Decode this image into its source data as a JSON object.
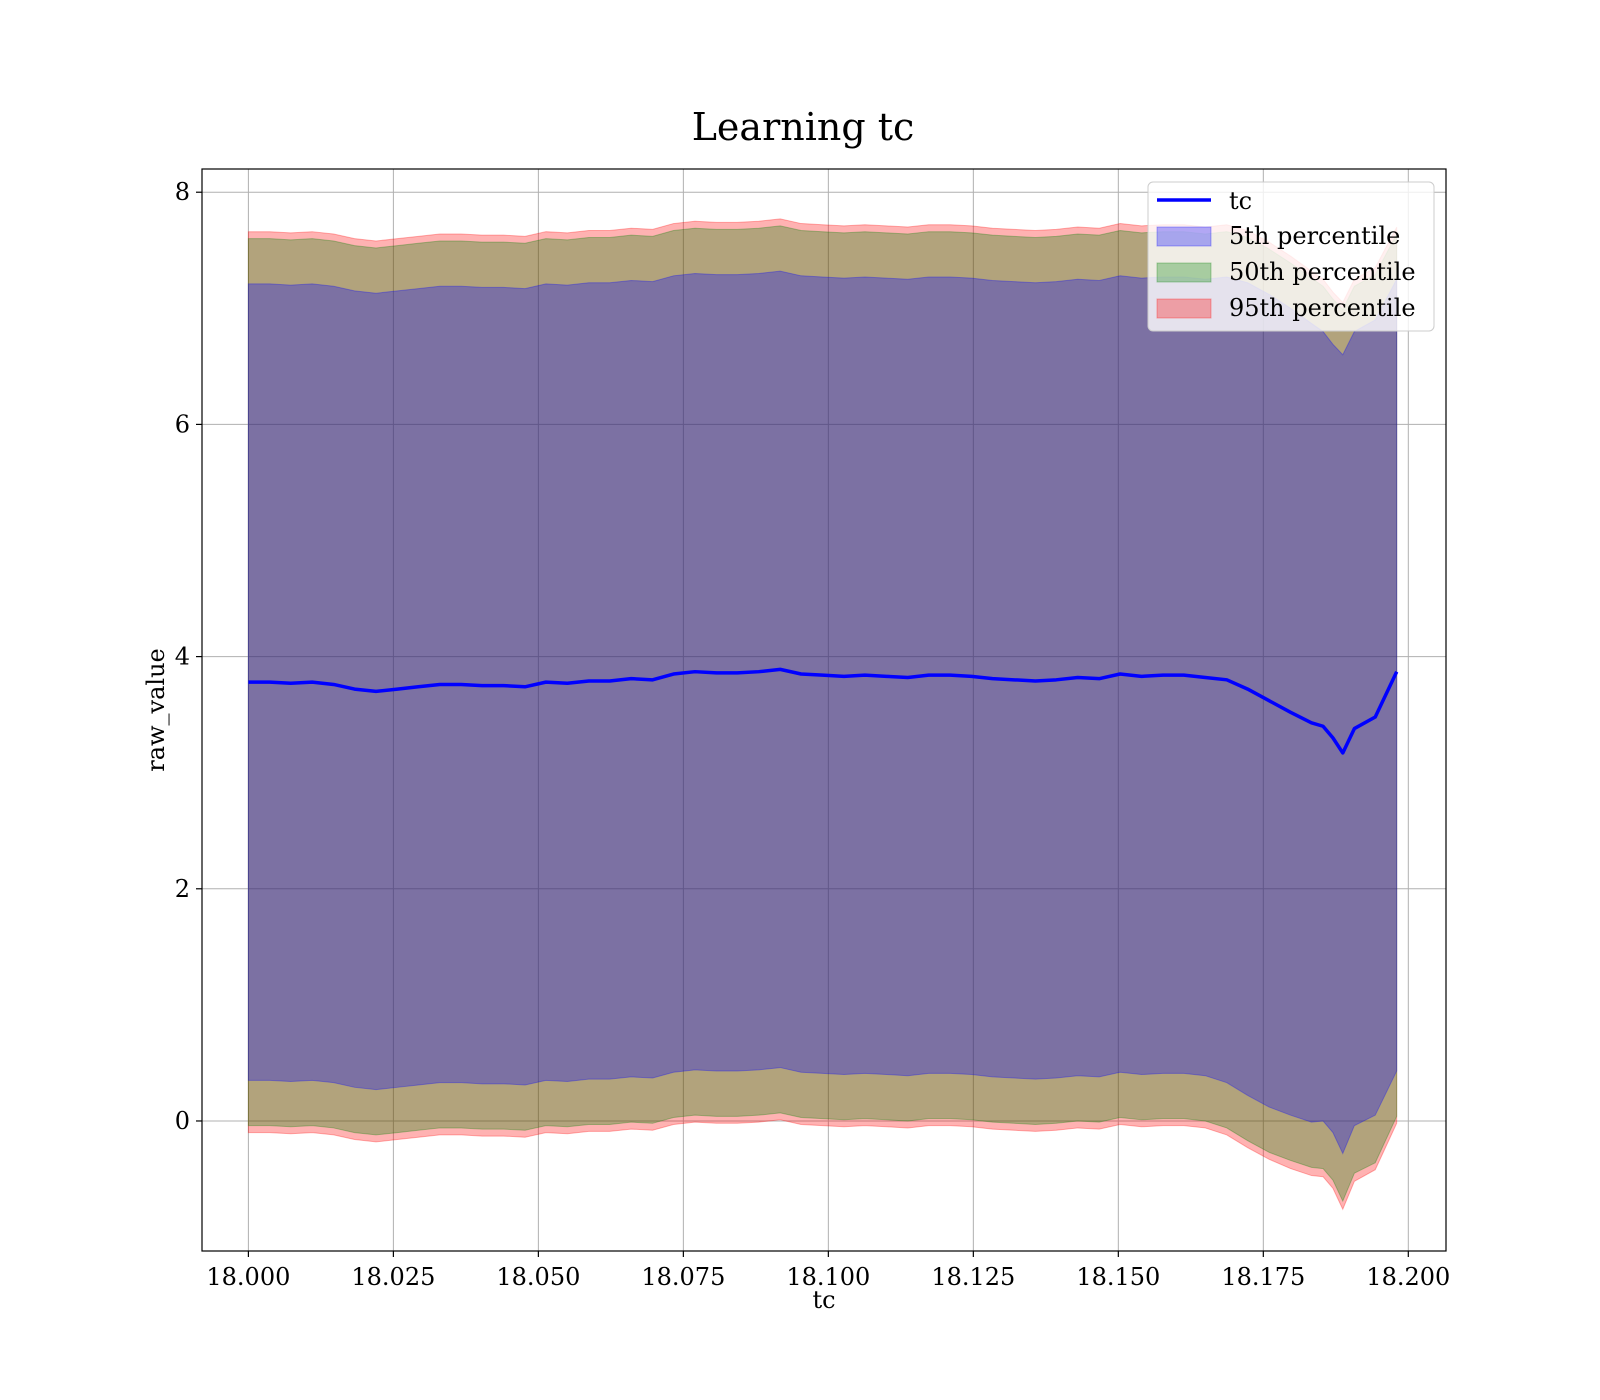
{
  "chart_data": {
    "type": "area",
    "title": "Learning tc",
    "xlabel": "tc",
    "ylabel": "raw_value",
    "xlim": [
      17.992,
      18.2065
    ],
    "ylim": [
      -1.12,
      8.2
    ],
    "xticks": [
      18.0,
      18.025,
      18.05,
      18.075,
      18.1,
      18.125,
      18.15,
      18.175,
      18.2
    ],
    "xtick_labels": [
      "18.000",
      "18.025",
      "18.050",
      "18.075",
      "18.100",
      "18.125",
      "18.150",
      "18.175",
      "18.200"
    ],
    "yticks": [
      0,
      2,
      4,
      6,
      8
    ],
    "ytick_labels": [
      "0",
      "2",
      "4",
      "6",
      "8"
    ],
    "grid": true,
    "legend_position": "top-right",
    "legend": [
      {
        "label": "tc",
        "kind": "line",
        "color": "#0000ff"
      },
      {
        "label": "5th percentile",
        "kind": "patch",
        "color": "#0000ff"
      },
      {
        "label": "50th percentile",
        "kind": "patch",
        "color": "#008000"
      },
      {
        "label": "95th percentile",
        "kind": "patch",
        "color": "#ff0000"
      }
    ],
    "x": [
      18.0,
      18.0037,
      18.0073,
      18.011,
      18.0147,
      18.0183,
      18.022,
      18.0257,
      18.0293,
      18.033,
      18.0367,
      18.0403,
      18.044,
      18.0477,
      18.0513,
      18.055,
      18.0587,
      18.0623,
      18.066,
      18.0697,
      18.0733,
      18.077,
      18.0807,
      18.0843,
      18.088,
      18.0917,
      18.0953,
      18.099,
      18.1027,
      18.1063,
      18.11,
      18.1137,
      18.1173,
      18.121,
      18.1247,
      18.1283,
      18.132,
      18.1357,
      18.1393,
      18.143,
      18.1467,
      18.1503,
      18.154,
      18.1577,
      18.1613,
      18.165,
      18.1687,
      18.1723,
      18.176,
      18.1797,
      18.1833,
      18.1853,
      18.187,
      18.1887,
      18.1907,
      18.1943,
      18.198
    ],
    "series": [
      {
        "name": "tc",
        "color": "#0000ff",
        "values": [
          3.78,
          3.78,
          3.77,
          3.78,
          3.76,
          3.72,
          3.7,
          3.72,
          3.74,
          3.76,
          3.76,
          3.75,
          3.75,
          3.74,
          3.78,
          3.77,
          3.79,
          3.79,
          3.81,
          3.8,
          3.85,
          3.87,
          3.86,
          3.86,
          3.87,
          3.89,
          3.85,
          3.84,
          3.83,
          3.84,
          3.83,
          3.82,
          3.84,
          3.84,
          3.83,
          3.81,
          3.8,
          3.79,
          3.8,
          3.82,
          3.81,
          3.85,
          3.83,
          3.84,
          3.84,
          3.82,
          3.8,
          3.72,
          3.62,
          3.52,
          3.43,
          3.4,
          3.3,
          3.17,
          3.38,
          3.48,
          3.87
        ]
      },
      {
        "name": "5th percentile",
        "color": "#0000ff",
        "lower": [
          0.35,
          0.35,
          0.34,
          0.35,
          0.33,
          0.29,
          0.27,
          0.29,
          0.31,
          0.33,
          0.33,
          0.32,
          0.32,
          0.31,
          0.35,
          0.34,
          0.36,
          0.36,
          0.38,
          0.37,
          0.42,
          0.44,
          0.43,
          0.43,
          0.44,
          0.46,
          0.42,
          0.41,
          0.4,
          0.41,
          0.4,
          0.39,
          0.41,
          0.41,
          0.4,
          0.38,
          0.37,
          0.36,
          0.37,
          0.39,
          0.38,
          0.42,
          0.4,
          0.41,
          0.41,
          0.39,
          0.33,
          0.22,
          0.12,
          0.05,
          -0.01,
          0.0,
          -0.1,
          -0.28,
          -0.04,
          0.05,
          0.43
        ],
        "upper": [
          7.21,
          7.21,
          7.2,
          7.21,
          7.19,
          7.15,
          7.13,
          7.15,
          7.17,
          7.19,
          7.19,
          7.18,
          7.18,
          7.17,
          7.21,
          7.2,
          7.22,
          7.22,
          7.24,
          7.23,
          7.28,
          7.3,
          7.29,
          7.29,
          7.3,
          7.32,
          7.28,
          7.27,
          7.26,
          7.27,
          7.26,
          7.25,
          7.27,
          7.27,
          7.26,
          7.24,
          7.23,
          7.22,
          7.23,
          7.25,
          7.24,
          7.28,
          7.26,
          7.27,
          7.27,
          7.25,
          7.27,
          7.22,
          7.12,
          7.0,
          6.87,
          6.8,
          6.69,
          6.6,
          6.8,
          6.9,
          7.25
        ]
      },
      {
        "name": "50th percentile",
        "color": "#008000",
        "lower": [
          -0.04,
          -0.04,
          -0.05,
          -0.04,
          -0.06,
          -0.1,
          -0.12,
          -0.1,
          -0.08,
          -0.06,
          -0.06,
          -0.07,
          -0.07,
          -0.08,
          -0.04,
          -0.05,
          -0.03,
          -0.03,
          -0.01,
          -0.02,
          0.03,
          0.05,
          0.04,
          0.04,
          0.05,
          0.07,
          0.03,
          0.02,
          0.01,
          0.02,
          0.01,
          0.0,
          0.02,
          0.02,
          0.01,
          -0.01,
          -0.02,
          -0.03,
          -0.02,
          0.0,
          -0.01,
          0.03,
          0.01,
          0.02,
          0.02,
          0.0,
          -0.06,
          -0.17,
          -0.27,
          -0.34,
          -0.4,
          -0.41,
          -0.51,
          -0.69,
          -0.45,
          -0.36,
          0.04
        ],
        "upper": [
          7.6,
          7.6,
          7.59,
          7.6,
          7.58,
          7.54,
          7.52,
          7.54,
          7.56,
          7.58,
          7.58,
          7.57,
          7.57,
          7.56,
          7.6,
          7.59,
          7.61,
          7.61,
          7.63,
          7.62,
          7.67,
          7.69,
          7.68,
          7.68,
          7.69,
          7.71,
          7.67,
          7.66,
          7.65,
          7.66,
          7.65,
          7.64,
          7.66,
          7.66,
          7.65,
          7.63,
          7.62,
          7.61,
          7.62,
          7.64,
          7.63,
          7.67,
          7.65,
          7.66,
          7.66,
          7.64,
          7.66,
          7.61,
          7.51,
          7.39,
          7.26,
          7.19,
          7.08,
          6.99,
          7.19,
          7.29,
          7.64
        ]
      },
      {
        "name": "95th percentile",
        "color": "#ff0000",
        "lower": [
          -0.1,
          -0.1,
          -0.11,
          -0.1,
          -0.12,
          -0.16,
          -0.18,
          -0.16,
          -0.14,
          -0.12,
          -0.12,
          -0.13,
          -0.13,
          -0.14,
          -0.1,
          -0.11,
          -0.09,
          -0.09,
          -0.07,
          -0.08,
          -0.03,
          -0.01,
          -0.02,
          -0.02,
          -0.01,
          0.01,
          -0.03,
          -0.04,
          -0.05,
          -0.04,
          -0.05,
          -0.06,
          -0.04,
          -0.04,
          -0.05,
          -0.07,
          -0.08,
          -0.09,
          -0.08,
          -0.06,
          -0.07,
          -0.03,
          -0.05,
          -0.04,
          -0.04,
          -0.06,
          -0.12,
          -0.23,
          -0.33,
          -0.41,
          -0.47,
          -0.48,
          -0.58,
          -0.76,
          -0.52,
          -0.42,
          -0.02
        ],
        "upper": [
          7.66,
          7.66,
          7.65,
          7.66,
          7.64,
          7.6,
          7.58,
          7.6,
          7.62,
          7.64,
          7.64,
          7.63,
          7.63,
          7.62,
          7.66,
          7.65,
          7.67,
          7.67,
          7.69,
          7.68,
          7.73,
          7.75,
          7.74,
          7.74,
          7.75,
          7.77,
          7.73,
          7.72,
          7.71,
          7.72,
          7.71,
          7.7,
          7.72,
          7.72,
          7.71,
          7.69,
          7.68,
          7.67,
          7.68,
          7.7,
          7.69,
          7.73,
          7.71,
          7.72,
          7.72,
          7.7,
          7.72,
          7.67,
          7.57,
          7.45,
          7.32,
          7.25,
          7.14,
          7.05,
          7.25,
          7.35,
          7.7
        ]
      }
    ]
  }
}
